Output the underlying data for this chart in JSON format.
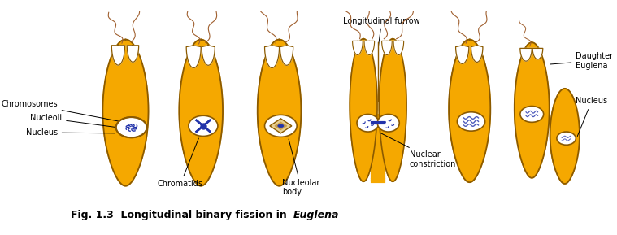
{
  "title": "Fig. 1.3  Longitudinal binary fission in ",
  "title_italic": "Euglena",
  "background_color": "#ffffff",
  "cell_color": "#F5A800",
  "cell_color2": "#F0A000",
  "cell_edge_color": "#8B5A00",
  "nucleus_fill": "#ffffff",
  "nucleus_edge": "#8B5A00",
  "blue_dark": "#2233AA",
  "blue_light": "#6688CC",
  "flagella_color": "#A06030",
  "figsize": [
    7.59,
    2.89
  ],
  "dpi": 100,
  "labels": {
    "chromosomes": "Chromosomes",
    "nucleoli": "Nucleoli",
    "nucleus": "Nucleus",
    "chromatids": "Chromatids",
    "nucleolar_body": "Nucleolar\nbody",
    "longitudinal_furrow": "Longitudinal furrow",
    "nuclear_constriction": "Nuclear\nconstriction",
    "daughter_euglena": "Daughter\nEuglena",
    "nucleus2": "Nucleus"
  }
}
